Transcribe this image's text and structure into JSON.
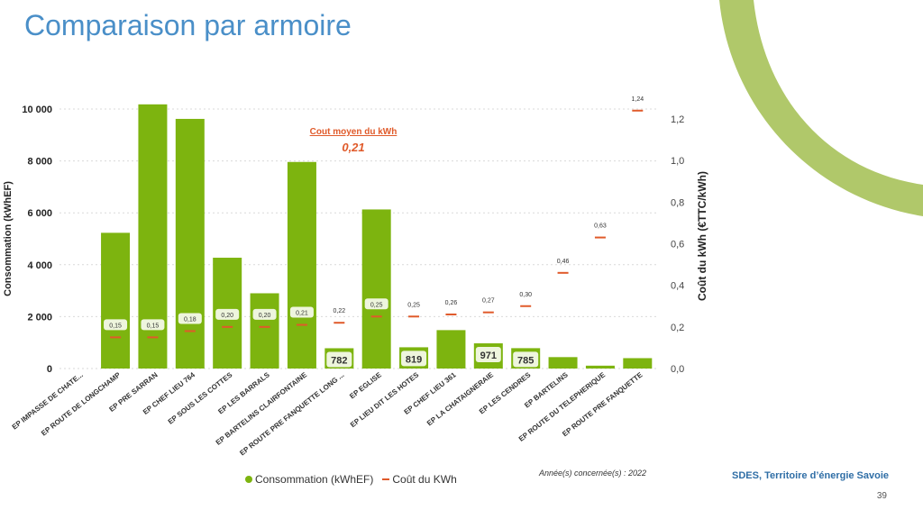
{
  "page": {
    "title": "Comparaison par armoire",
    "slide_number": "39",
    "organization": "SDES, Territoire d’énergie Savoie",
    "year_note": "Année(s) concernée(s) : 2022"
  },
  "legend": {
    "consumption": "Consommation (kWhEF)",
    "cost": "Coût du KWh"
  },
  "colors": {
    "bar": "#7db40f",
    "cost": "#e05a2a",
    "title": "#4a8fc8",
    "arc": "#b0c86a"
  },
  "chart_data": {
    "type": "bar",
    "ylabel": "Consommation (kWhEF)",
    "y2label": "Coût du kWh (€TTC/kWh)",
    "ylim": [
      0,
      10000
    ],
    "y_ticks": [
      "0",
      "2 000",
      "4 000",
      "6 000",
      "8 000",
      "10 000"
    ],
    "y2lim": [
      0,
      1.3
    ],
    "y2_ticks": [
      "0,0",
      "0,2",
      "0,4",
      "0,6",
      "0,8",
      "1,0",
      "1,2"
    ],
    "grid": true,
    "legend_position": "bottom",
    "annotation_title": "Cout moyen du kWh",
    "annotation_value": "0,21",
    "categories": [
      "EP IMPASSE DE CHATE...",
      "EP ROUTE DE LONGCHAMP",
      "EP PRE SARRAN",
      "EP CHEF LIEU 764",
      "EP SOUS LES COTTES",
      "EP LES BARRALS",
      "EP BARTELINS CLAIRFONTAINE",
      "EP ROUTE PRE FANQUETTE LONG ...",
      "EP EGLISE",
      "EP LIEU DIT LES HOTES",
      "EP CHEF LIEU 361",
      "EP LA CHATAIGNERAIE",
      "EP LES CENDRES",
      "EP BARTELINS",
      "EP ROUTE DU TELEPHERIQUE",
      "EP ROUTE PRE FANQUETTE"
    ],
    "series": [
      {
        "name": "Consommation (kWhEF)",
        "values": [
          0,
          5230,
          10180,
          9620,
          4270,
          2900,
          7960,
          782,
          6130,
          819,
          1480,
          971,
          785,
          440,
          110,
          400
        ],
        "labels": [
          "",
          "",
          "",
          "",
          "",
          "",
          "",
          "782",
          "",
          "819",
          "",
          "971",
          "785",
          "",
          "",
          ""
        ]
      },
      {
        "name": "Coût du KWh",
        "values": [
          null,
          0.15,
          0.15,
          0.18,
          0.2,
          0.2,
          0.21,
          0.22,
          0.25,
          0.25,
          0.26,
          0.27,
          0.3,
          0.46,
          0.63,
          1.24
        ],
        "labels": [
          "",
          "0,15",
          "0,15",
          "0,18",
          "0,20",
          "0,20",
          "0,21",
          "0,22",
          "0,25",
          "0,25",
          "0,26",
          "0,27",
          "0,30",
          "0,46",
          "0,63",
          "1,24"
        ]
      }
    ]
  }
}
